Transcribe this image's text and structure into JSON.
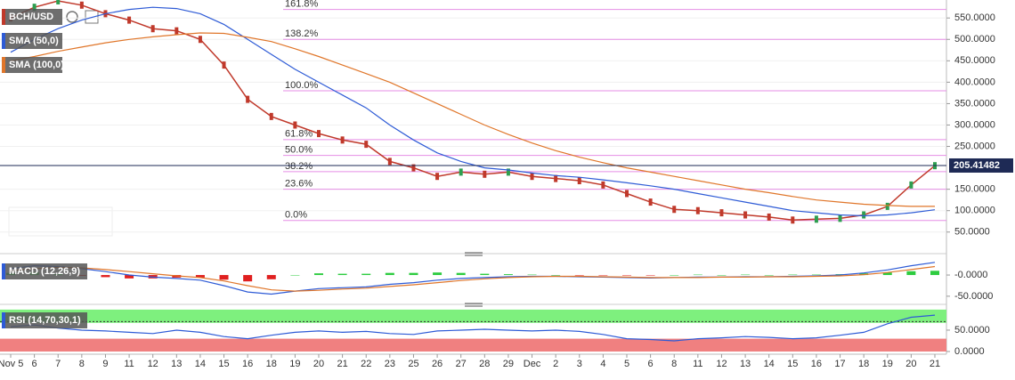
{
  "chart_data": [
    {
      "type": "line",
      "grid": true,
      "ylim": [
        10,
        592
      ],
      "yticks": [
        {
          "value": 550,
          "label": "550.0000"
        },
        {
          "value": 500,
          "label": "500.0000"
        },
        {
          "value": 450,
          "label": "450.0000"
        },
        {
          "value": 400,
          "label": "400.0000"
        },
        {
          "value": 350,
          "label": "350.0000"
        },
        {
          "value": 300,
          "label": "300.0000"
        },
        {
          "value": 250,
          "label": "250.0000"
        },
        {
          "value": 150,
          "label": "150.0000"
        },
        {
          "value": 100,
          "label": "100.0000"
        },
        {
          "value": 50,
          "label": "50.0000"
        }
      ],
      "series": [
        {
          "name": "BCH/USD",
          "color": "#c0392b",
          "values": [
            550,
            575,
            590,
            580,
            560,
            545,
            525,
            520,
            500,
            440,
            360,
            320,
            300,
            280,
            265,
            255,
            215,
            200,
            180,
            190,
            185,
            190,
            180,
            175,
            170,
            160,
            140,
            120,
            103,
            100,
            95,
            90,
            85,
            78,
            80,
            82,
            90,
            110,
            160,
            205
          ]
        },
        {
          "name": "SMA (50,0)",
          "color": "#2e5bd6",
          "values": [
            470,
            500,
            525,
            545,
            560,
            570,
            575,
            572,
            560,
            535,
            500,
            465,
            430,
            400,
            370,
            340,
            300,
            265,
            235,
            215,
            200,
            195,
            188,
            182,
            178,
            172,
            165,
            158,
            150,
            140,
            130,
            120,
            110,
            100,
            95,
            90,
            88,
            90,
            95,
            102
          ]
        },
        {
          "name": "SMA (100,0)",
          "color": "#e0762a",
          "values": [
            450,
            460,
            472,
            482,
            492,
            500,
            506,
            511,
            515,
            514,
            505,
            495,
            478,
            460,
            440,
            420,
            400,
            375,
            350,
            325,
            300,
            278,
            258,
            240,
            225,
            212,
            200,
            190,
            180,
            170,
            160,
            150,
            142,
            133,
            125,
            120,
            115,
            112,
            110,
            110
          ]
        }
      ],
      "fib_color": "#e58ee5",
      "fib_levels": [
        {
          "label": "161.8%",
          "value": 570
        },
        {
          "label": "138.2%",
          "value": 500
        },
        {
          "label": "100.0%",
          "value": 380
        },
        {
          "label": "61.8%",
          "value": 266
        },
        {
          "label": "50.0%",
          "value": 229
        },
        {
          "label": "38.2%",
          "value": 191
        },
        {
          "label": "23.6%",
          "value": 150
        },
        {
          "label": "0.0%",
          "value": 77
        }
      ],
      "last_price": 205.41482,
      "last_price_color": "#1e2a55"
    },
    {
      "type": "line",
      "title": "MACD (12,26,9)",
      "ylim": [
        -65,
        40
      ],
      "yticks": [
        {
          "value": 0,
          "label": "-0.0000"
        },
        {
          "value": -50,
          "label": "-50.0000"
        }
      ],
      "series": [
        {
          "color": "#2e5bd6",
          "values": [
            15,
            22,
            20,
            15,
            8,
            0,
            -5,
            -8,
            -12,
            -25,
            -40,
            -45,
            -38,
            -32,
            -30,
            -28,
            -22,
            -18,
            -12,
            -8,
            -6,
            -4,
            -3,
            -3,
            -4,
            -5,
            -6,
            -7,
            -6,
            -5,
            -5,
            -4,
            -4,
            -3,
            -2,
            0,
            5,
            12,
            22,
            30
          ]
        },
        {
          "color": "#e0762a",
          "values": [
            10,
            15,
            18,
            17,
            13,
            8,
            3,
            -2,
            -6,
            -14,
            -25,
            -35,
            -38,
            -36,
            -33,
            -31,
            -27,
            -23,
            -18,
            -13,
            -9,
            -6,
            -4,
            -3,
            -3,
            -4,
            -5,
            -6,
            -6,
            -6,
            -5,
            -5,
            -4,
            -4,
            -3,
            -2,
            1,
            6,
            13,
            20
          ]
        }
      ],
      "histogram": {
        "positive_color": "#2ecc40",
        "negative_color": "#e02020",
        "values": [
          5,
          7,
          2,
          -2,
          -5,
          -8,
          -8,
          -6,
          -6,
          -11,
          -15,
          -10,
          0,
          4,
          3,
          3,
          5,
          5,
          6,
          5,
          3,
          2,
          1,
          0,
          -1,
          -1,
          -1,
          -1,
          0,
          1,
          0,
          1,
          0,
          1,
          1,
          2,
          4,
          6,
          9,
          10
        ]
      }
    },
    {
      "type": "line",
      "title": "RSI (14,70,30,1)",
      "ylim": [
        0,
        104
      ],
      "yticks": [
        {
          "value": 50,
          "label": "50.0000"
        },
        {
          "value": 0,
          "label": "0.0000"
        }
      ],
      "bands": [
        {
          "from": 67,
          "to": 98,
          "color": "#7ef07e"
        },
        {
          "from": 0,
          "to": 30,
          "color": "#f08080"
        }
      ],
      "levels": [
        70
      ],
      "series": [
        {
          "color": "#2e5bd6",
          "values": [
            58,
            62,
            55,
            50,
            48,
            45,
            42,
            50,
            45,
            35,
            30,
            38,
            45,
            48,
            45,
            47,
            42,
            40,
            48,
            50,
            52,
            50,
            48,
            50,
            47,
            40,
            30,
            28,
            25,
            30,
            32,
            35,
            33,
            30,
            32,
            38,
            45,
            65,
            80,
            85
          ]
        }
      ],
      "categories": [
        "Nov 5",
        "6",
        "7",
        "8",
        "9",
        "11",
        "12",
        "13",
        "14",
        "15",
        "16",
        "18",
        "19",
        "20",
        "21",
        "22",
        "23",
        "25",
        "26",
        "27",
        "28",
        "29",
        "Dec",
        "2",
        "3",
        "4",
        "5",
        "6",
        "8",
        "11",
        "12",
        "13",
        "14",
        "15",
        "16",
        "17",
        "18",
        "19",
        "20",
        "21"
      ]
    }
  ]
}
